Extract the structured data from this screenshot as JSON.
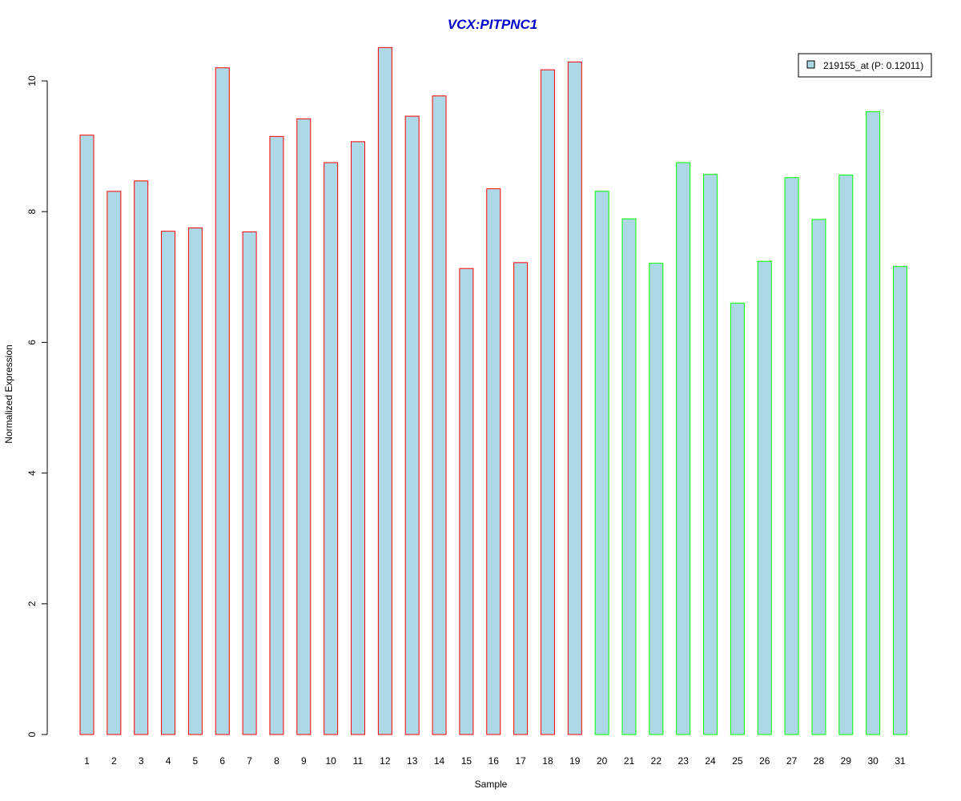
{
  "colors": {
    "bar_fill": "#add8e6",
    "group1_border": "#ff0000",
    "group2_border": "#00ff00",
    "title": "#0000cc",
    "axis": "#000000"
  },
  "chart_data": {
    "type": "bar",
    "title": "VCX:PITPNC1",
    "xlabel": "Sample",
    "ylabel": "Normalized Expression",
    "ylim": [
      0,
      10.5
    ],
    "yticks": [
      "0",
      "2",
      "4",
      "6",
      "8",
      "10"
    ],
    "grid": false,
    "legend_position": "top-right",
    "categories": [
      "1",
      "2",
      "3",
      "4",
      "5",
      "6",
      "7",
      "8",
      "9",
      "10",
      "11",
      "12",
      "13",
      "14",
      "15",
      "16",
      "17",
      "18",
      "19",
      "20",
      "21",
      "22",
      "23",
      "24",
      "25",
      "26",
      "27",
      "28",
      "29",
      "30",
      "31"
    ],
    "series": [
      {
        "name": "219155_at (P: 0.12011)",
        "values": [
          9.17,
          8.31,
          8.47,
          7.7,
          7.75,
          10.2,
          7.69,
          9.15,
          9.42,
          8.75,
          9.07,
          10.51,
          9.46,
          9.77,
          7.13,
          8.35,
          7.22,
          10.17,
          10.29,
          8.31,
          7.89,
          7.21,
          8.75,
          8.57,
          6.6,
          7.24,
          8.52,
          7.88,
          8.56,
          9.53,
          7.16
        ],
        "groups": [
          1,
          1,
          1,
          1,
          1,
          1,
          1,
          1,
          1,
          1,
          1,
          1,
          1,
          1,
          1,
          1,
          1,
          1,
          1,
          2,
          2,
          2,
          2,
          2,
          2,
          2,
          2,
          2,
          2,
          2,
          2
        ]
      }
    ]
  }
}
